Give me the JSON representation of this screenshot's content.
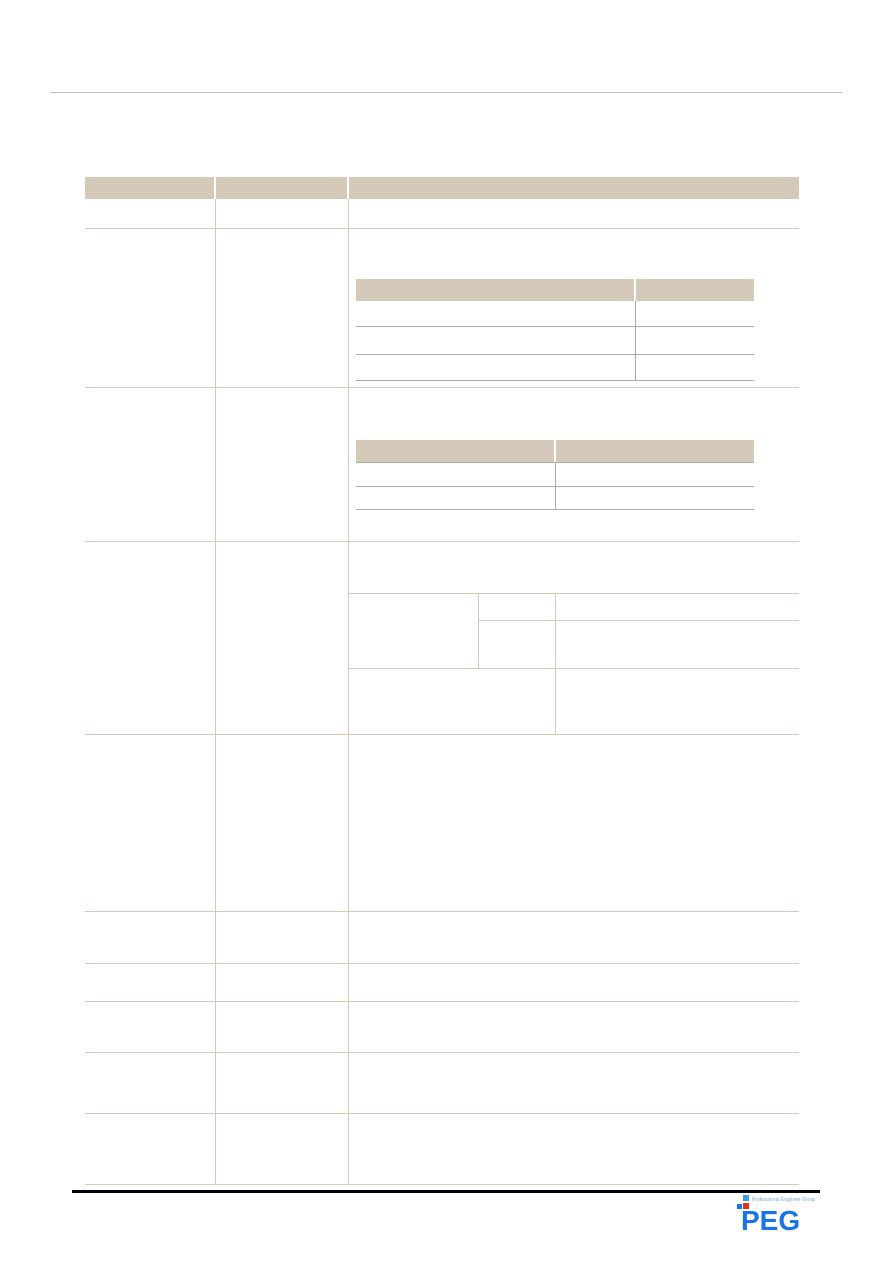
{
  "colors": {
    "header_fill": "#d5cab9",
    "rule_tan": "#d5cab9",
    "rule_gray": "#aaaaaa",
    "footer_rule": "#000000",
    "logo_blue": "#1a73e8",
    "logo_red": "#e0302a"
  },
  "footer": {
    "logo": {
      "text": "PEG",
      "tagline": "Professional Engineer Group"
    }
  }
}
